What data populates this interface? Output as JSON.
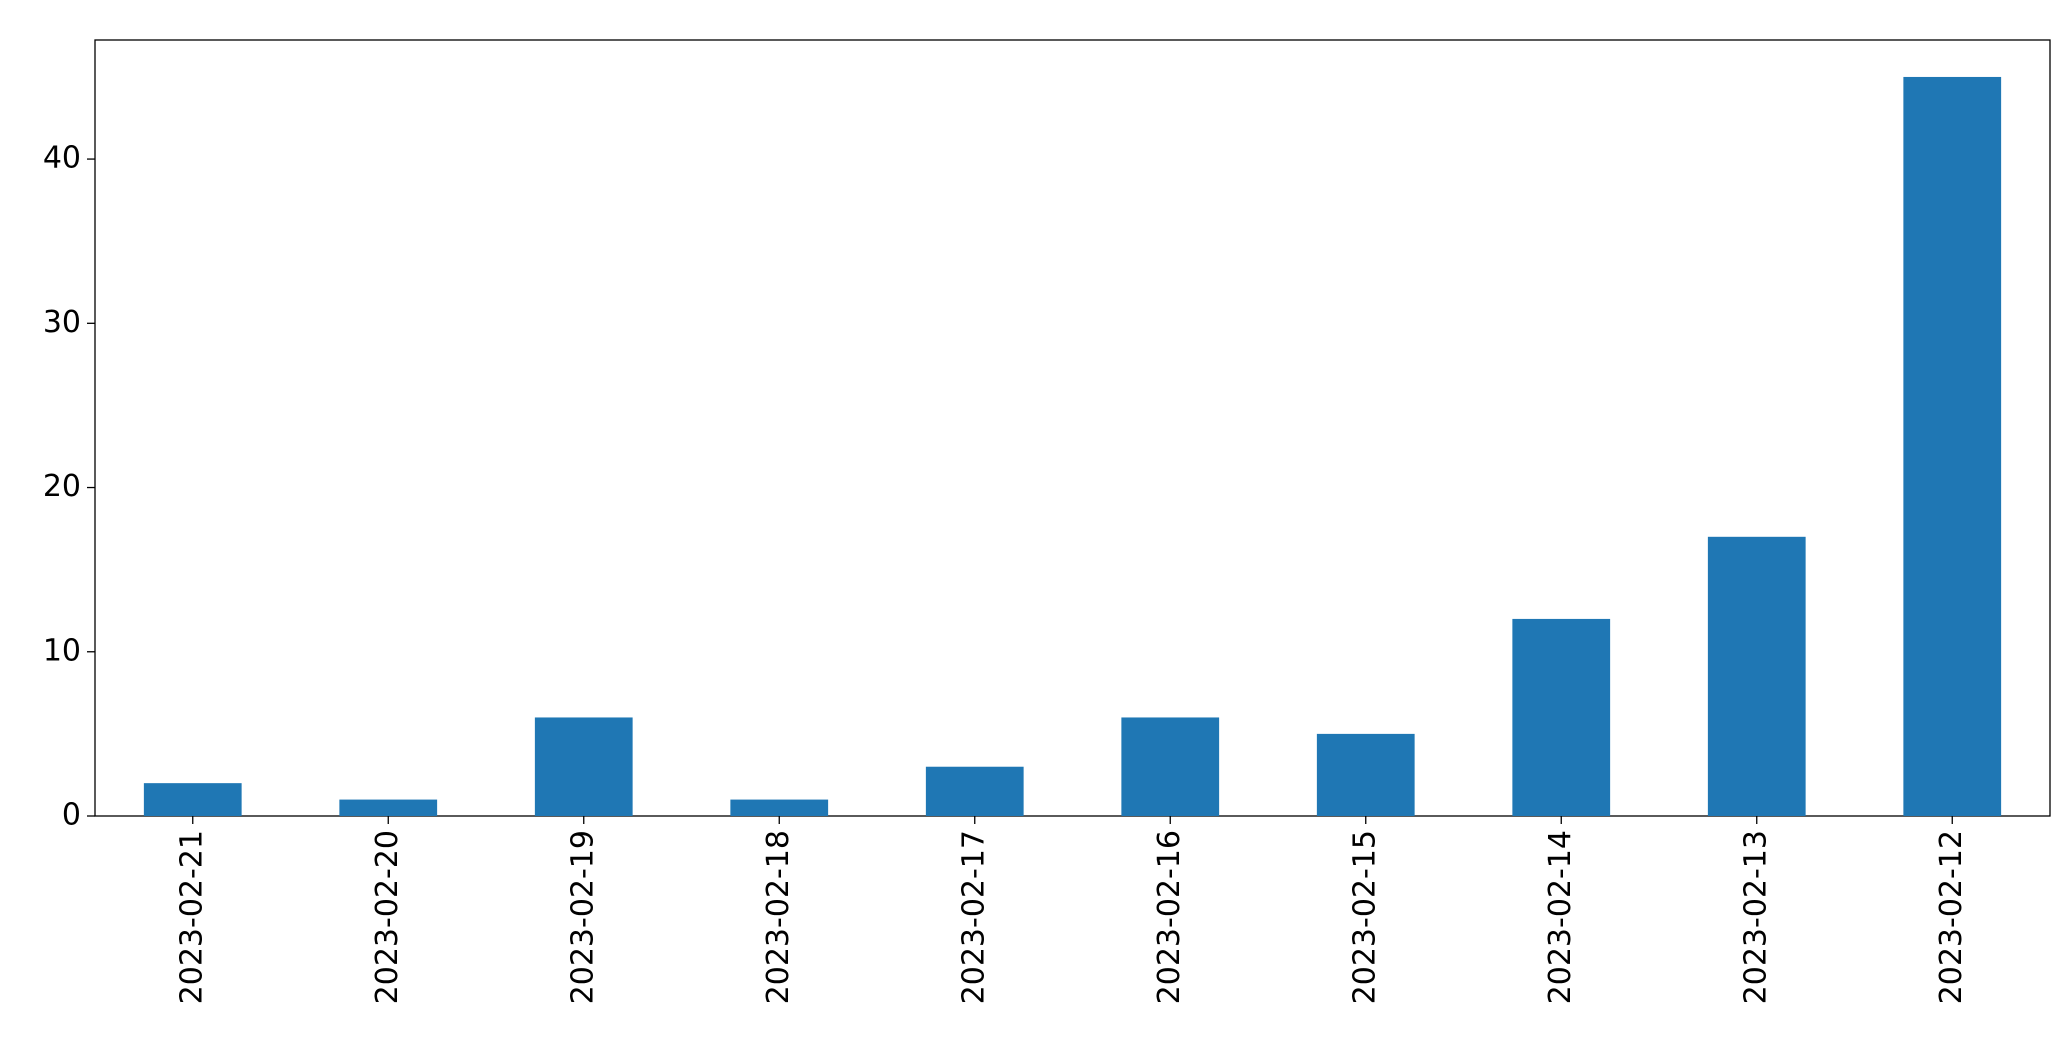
{
  "chart_data": {
    "type": "bar",
    "categories": [
      "2023-02-21",
      "2023-02-20",
      "2023-02-19",
      "2023-02-18",
      "2023-02-17",
      "2023-02-16",
      "2023-02-15",
      "2023-02-14",
      "2023-02-13",
      "2023-02-12"
    ],
    "values": [
      2,
      1,
      6,
      1,
      3,
      6,
      5,
      12,
      17,
      45
    ],
    "color": "#1f77b4",
    "ylim": [
      0,
      47.25
    ],
    "yticks": [
      0,
      10,
      20,
      30,
      40
    ],
    "grid": false
  }
}
